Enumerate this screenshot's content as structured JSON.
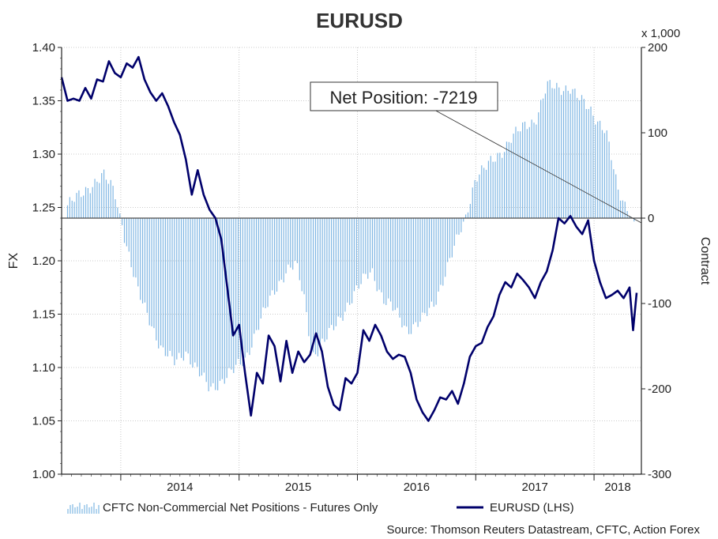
{
  "chart_data": {
    "type": "bar+line",
    "title": "EURUSD",
    "y_left_label": "FX",
    "y_right_label": "Contract",
    "y_right_unit": "x 1,000",
    "ylim_left": [
      1.0,
      1.4
    ],
    "ylim_right": [
      -300,
      200
    ],
    "y_left_ticks": [
      "1.00",
      "1.05",
      "1.10",
      "1.15",
      "1.20",
      "1.25",
      "1.30",
      "1.35",
      "1.40"
    ],
    "y_right_ticks": [
      "-300",
      "-200",
      "-100",
      "0",
      "100",
      "200"
    ],
    "x_ticks": [
      "2014",
      "2015",
      "2016",
      "2017",
      "2018"
    ],
    "grid": true,
    "legend_position": "bottom",
    "annotation": "Net Position: -7219",
    "source": "Source: Thomson Reuters Datastream, CFTC, Action Forex",
    "series": [
      {
        "name": "CFTC Non-Commercial Net Positions - Futures Only",
        "kind": "bar",
        "axis": "right",
        "color": "#7fb6e3",
        "points": [
          [
            2013.55,
            15
          ],
          [
            2013.65,
            25
          ],
          [
            2013.75,
            40
          ],
          [
            2013.85,
            50
          ],
          [
            2013.95,
            30
          ],
          [
            2014.0,
            0
          ],
          [
            2014.08,
            -50
          ],
          [
            2014.15,
            -90
          ],
          [
            2014.25,
            -120
          ],
          [
            2014.35,
            -155
          ],
          [
            2014.45,
            -170
          ],
          [
            2014.55,
            -155
          ],
          [
            2014.65,
            -180
          ],
          [
            2014.75,
            -200
          ],
          [
            2014.85,
            -190
          ],
          [
            2014.95,
            -180
          ],
          [
            2015.05,
            -165
          ],
          [
            2015.15,
            -130
          ],
          [
            2015.25,
            -100
          ],
          [
            2015.3,
            -85
          ],
          [
            2015.4,
            -60
          ],
          [
            2015.48,
            -55
          ],
          [
            2015.55,
            -95
          ],
          [
            2015.62,
            -160
          ],
          [
            2015.72,
            -145
          ],
          [
            2015.82,
            -125
          ],
          [
            2015.92,
            -100
          ],
          [
            2016.02,
            -80
          ],
          [
            2016.12,
            -60
          ],
          [
            2016.22,
            -95
          ],
          [
            2016.32,
            -110
          ],
          [
            2016.42,
            -130
          ],
          [
            2016.55,
            -120
          ],
          [
            2016.65,
            -100
          ],
          [
            2016.75,
            -60
          ],
          [
            2016.85,
            -25
          ],
          [
            2016.92,
            5
          ],
          [
            2017.0,
            50
          ],
          [
            2017.1,
            60
          ],
          [
            2017.2,
            75
          ],
          [
            2017.3,
            95
          ],
          [
            2017.4,
            105
          ],
          [
            2017.5,
            115
          ],
          [
            2017.6,
            155
          ],
          [
            2017.7,
            150
          ],
          [
            2017.8,
            155
          ],
          [
            2017.9,
            135
          ],
          [
            2018.0,
            120
          ],
          [
            2018.1,
            105
          ],
          [
            2018.2,
            30
          ],
          [
            2018.28,
            10
          ],
          [
            2018.35,
            -7
          ]
        ]
      },
      {
        "name": "EURUSD (LHS)",
        "kind": "line",
        "axis": "left",
        "color": "#00006b",
        "points": [
          [
            2013.5,
            1.372
          ],
          [
            2013.55,
            1.35
          ],
          [
            2013.6,
            1.352
          ],
          [
            2013.65,
            1.35
          ],
          [
            2013.7,
            1.362
          ],
          [
            2013.75,
            1.352
          ],
          [
            2013.8,
            1.37
          ],
          [
            2013.85,
            1.368
          ],
          [
            2013.9,
            1.387
          ],
          [
            2013.95,
            1.376
          ],
          [
            2014.0,
            1.372
          ],
          [
            2014.05,
            1.385
          ],
          [
            2014.1,
            1.381
          ],
          [
            2014.15,
            1.391
          ],
          [
            2014.2,
            1.37
          ],
          [
            2014.25,
            1.358
          ],
          [
            2014.3,
            1.35
          ],
          [
            2014.35,
            1.357
          ],
          [
            2014.4,
            1.345
          ],
          [
            2014.45,
            1.33
          ],
          [
            2014.5,
            1.318
          ],
          [
            2014.55,
            1.295
          ],
          [
            2014.6,
            1.262
          ],
          [
            2014.65,
            1.285
          ],
          [
            2014.7,
            1.262
          ],
          [
            2014.75,
            1.248
          ],
          [
            2014.8,
            1.24
          ],
          [
            2014.85,
            1.22
          ],
          [
            2014.9,
            1.175
          ],
          [
            2014.95,
            1.13
          ],
          [
            2015.0,
            1.14
          ],
          [
            2015.05,
            1.095
          ],
          [
            2015.1,
            1.055
          ],
          [
            2015.15,
            1.095
          ],
          [
            2015.2,
            1.085
          ],
          [
            2015.25,
            1.13
          ],
          [
            2015.3,
            1.12
          ],
          [
            2015.35,
            1.087
          ],
          [
            2015.4,
            1.125
          ],
          [
            2015.45,
            1.095
          ],
          [
            2015.5,
            1.115
          ],
          [
            2015.55,
            1.105
          ],
          [
            2015.6,
            1.112
          ],
          [
            2015.65,
            1.132
          ],
          [
            2015.7,
            1.115
          ],
          [
            2015.75,
            1.082
          ],
          [
            2015.8,
            1.065
          ],
          [
            2015.85,
            1.06
          ],
          [
            2015.9,
            1.09
          ],
          [
            2015.95,
            1.085
          ],
          [
            2016.0,
            1.095
          ],
          [
            2016.05,
            1.135
          ],
          [
            2016.1,
            1.125
          ],
          [
            2016.15,
            1.14
          ],
          [
            2016.2,
            1.13
          ],
          [
            2016.25,
            1.115
          ],
          [
            2016.3,
            1.108
          ],
          [
            2016.35,
            1.112
          ],
          [
            2016.4,
            1.11
          ],
          [
            2016.45,
            1.095
          ],
          [
            2016.5,
            1.07
          ],
          [
            2016.55,
            1.058
          ],
          [
            2016.6,
            1.05
          ],
          [
            2016.65,
            1.06
          ],
          [
            2016.7,
            1.072
          ],
          [
            2016.75,
            1.07
          ],
          [
            2016.8,
            1.078
          ],
          [
            2016.85,
            1.066
          ],
          [
            2016.9,
            1.085
          ],
          [
            2016.95,
            1.11
          ],
          [
            2017.0,
            1.12
          ],
          [
            2017.05,
            1.123
          ],
          [
            2017.1,
            1.138
          ],
          [
            2017.15,
            1.148
          ],
          [
            2017.2,
            1.168
          ],
          [
            2017.25,
            1.18
          ],
          [
            2017.3,
            1.175
          ],
          [
            2017.35,
            1.188
          ],
          [
            2017.4,
            1.182
          ],
          [
            2017.45,
            1.175
          ],
          [
            2017.5,
            1.165
          ],
          [
            2017.55,
            1.18
          ],
          [
            2017.6,
            1.19
          ],
          [
            2017.65,
            1.21
          ],
          [
            2017.7,
            1.24
          ],
          [
            2017.75,
            1.235
          ],
          [
            2017.8,
            1.242
          ],
          [
            2017.85,
            1.232
          ],
          [
            2017.9,
            1.225
          ],
          [
            2017.95,
            1.238
          ],
          [
            2018.0,
            1.2
          ],
          [
            2018.05,
            1.18
          ],
          [
            2018.1,
            1.165
          ],
          [
            2018.15,
            1.168
          ],
          [
            2018.2,
            1.172
          ],
          [
            2018.25,
            1.165
          ],
          [
            2018.3,
            1.175
          ],
          [
            2018.33,
            1.135
          ],
          [
            2018.36,
            1.17
          ]
        ]
      }
    ]
  }
}
